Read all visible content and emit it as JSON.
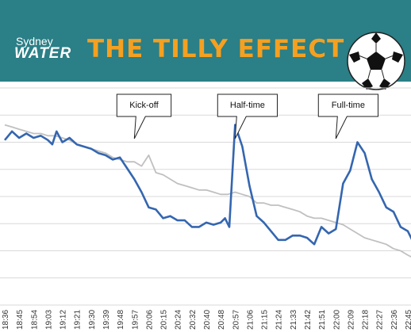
{
  "header": {
    "brand_top": "Sydney",
    "brand_main": "WATER",
    "headline": "THE TILLY EFFECT",
    "background_color": "#2b7f86",
    "headline_color": "#f5a020",
    "icon": "soccer-ball-icon"
  },
  "chart_data": {
    "type": "line",
    "title": "",
    "xlabel": "",
    "ylabel": "",
    "grid": true,
    "legend": "none",
    "y_ticks_shown": false,
    "ylim": [
      0,
      100
    ],
    "x_tick_labels": [
      "18:36",
      "18:45",
      "18:54",
      "19:03",
      "19:12",
      "19:21",
      "19:30",
      "19:39",
      "19:48",
      "19:57",
      "20:06",
      "20:15",
      "20:24",
      "20:32",
      "20:40",
      "20:48",
      "20:57",
      "21:06",
      "21:15",
      "21:24",
      "21:33",
      "21:42",
      "21:51",
      "22:00",
      "22:09",
      "22:18",
      "22:27",
      "22:36",
      "22:45"
    ],
    "series": [
      {
        "color": "#3466b0",
        "x": [
          0,
          0.5,
          1,
          1.5,
          2,
          2.5,
          3,
          3.3,
          3.6,
          4,
          4.5,
          5,
          5.5,
          6,
          6.5,
          7,
          7.5,
          8,
          8.5,
          9,
          9.5,
          10,
          10.5,
          11,
          11.5,
          12,
          12.5,
          13,
          13.5,
          14,
          14.5,
          15,
          15.3,
          15.6,
          16,
          16.5,
          17,
          17.5,
          18,
          18.5,
          19,
          19.5,
          20,
          20.5,
          21,
          21.5,
          22,
          22.5,
          23,
          23.5,
          24,
          24.5,
          25,
          25.5,
          26,
          26.5,
          27,
          27.5,
          28,
          28.3
        ],
        "values": [
          76,
          80,
          77,
          79,
          77,
          78,
          76,
          74,
          80,
          75,
          77,
          74,
          73,
          72,
          70,
          69,
          67,
          68,
          63,
          58,
          52,
          45,
          44,
          40,
          41,
          39,
          39,
          36,
          36,
          38,
          37,
          38,
          40,
          36,
          83,
          73,
          55,
          41,
          38,
          34,
          30,
          30,
          32,
          32,
          31,
          28,
          36,
          33,
          35,
          56,
          62,
          75,
          70,
          58,
          52,
          45,
          43,
          36,
          34,
          30
        ],
        "name": ""
      },
      {
        "color": "#c0c0c0",
        "x": [
          0,
          0.5,
          1,
          1.5,
          2,
          2.5,
          3,
          3.5,
          4,
          4.5,
          5,
          5.5,
          6,
          6.5,
          7,
          7.5,
          8,
          8.5,
          9,
          9.5,
          10,
          10.5,
          11,
          11.5,
          12,
          12.5,
          13,
          13.5,
          14,
          14.5,
          15,
          15.5,
          16,
          16.5,
          17,
          17.5,
          18,
          18.5,
          19,
          19.5,
          20,
          20.5,
          21,
          21.5,
          22,
          22.5,
          23,
          23.5,
          24,
          24.5,
          25,
          25.5,
          26,
          26.5,
          27,
          27.5,
          28,
          28.3
        ],
        "values": [
          83,
          82,
          81,
          80,
          79,
          79,
          78,
          78,
          77,
          76,
          74,
          73,
          72,
          71,
          70,
          68,
          67,
          66,
          66,
          64,
          69,
          61,
          60,
          58,
          56,
          55,
          54,
          53,
          53,
          52,
          51,
          51,
          52,
          51,
          50,
          47,
          47,
          46,
          46,
          45,
          44,
          43,
          41,
          40,
          40,
          39,
          38,
          37,
          35,
          33,
          31,
          30,
          29,
          28,
          26,
          25,
          23,
          22
        ],
        "name": ""
      }
    ],
    "annotations": [
      {
        "text": "Kick-off",
        "x": 9
      },
      {
        "text": "Half-time",
        "x": 16
      },
      {
        "text": "Full-time",
        "x": 23
      }
    ]
  }
}
